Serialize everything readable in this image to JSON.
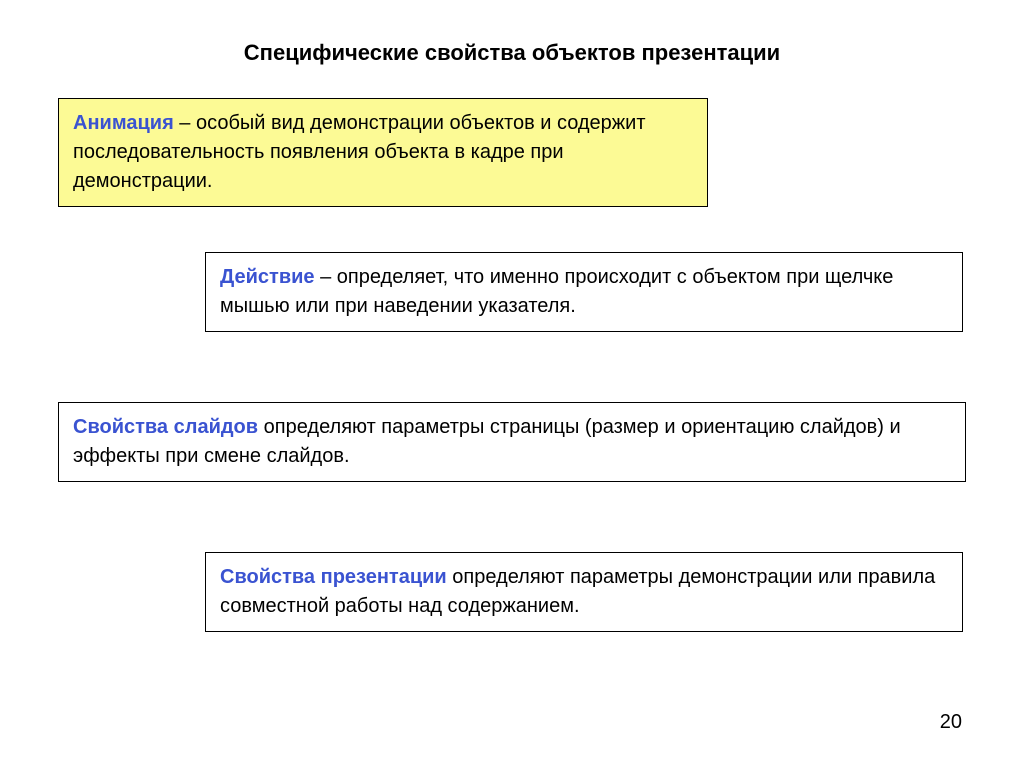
{
  "title": "Специфические свойства объектов презентации",
  "boxes": {
    "b1": {
      "term": "Анимация",
      "text": " – особый вид демонстрации объектов и содержит последовательность появления объекта в кадре при демонстрации."
    },
    "b2": {
      "term": "Действие",
      "text": " – определяет, что именно происходит с объектом при щелчке мышью или при наведении указателя."
    },
    "b3": {
      "term": "Свойства слайдов",
      "text": " определяют параметры страницы (размер и ориентацию слайдов) и эффекты при смене слайдов."
    },
    "b4": {
      "term": "Свойства презентации",
      "text": " определяют параметры демонстрации или правила совместной работы над содержанием."
    }
  },
  "page_number": "20"
}
